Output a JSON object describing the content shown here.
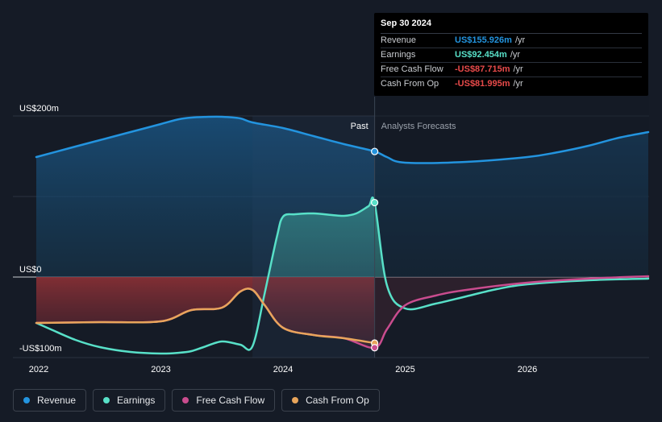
{
  "chart_data": {
    "type": "line",
    "x_ticks": [
      "2022",
      "2023",
      "2024",
      "2025",
      "2026"
    ],
    "y_axis_labels": [
      {
        "value": 200,
        "label": "US$200m"
      },
      {
        "value": 0,
        "label": "US$0"
      },
      {
        "value": -100,
        "label": "-US$100m"
      }
    ],
    "ylim": [
      -100,
      200
    ],
    "xlim": [
      2021.8,
      2026.99
    ],
    "past_label": "Past",
    "forecast_label": "Analysts Forecasts",
    "divider_x": 2024.75,
    "shaded_past_start": 2023.75,
    "series": [
      {
        "name": "Revenue",
        "color": "#2394df",
        "x": [
          2021.98,
          2022.25,
          2022.5,
          2022.75,
          2023.0,
          2023.15,
          2023.25,
          2023.4,
          2023.5,
          2023.65,
          2023.75,
          2024.0,
          2024.25,
          2024.5,
          2024.75,
          2024.85,
          2025.0,
          2025.5,
          2026.0,
          2026.25,
          2026.5,
          2026.75,
          2026.99
        ],
        "values": [
          149,
          160,
          170,
          180,
          190,
          196,
          198,
          199,
          199,
          197,
          192,
          185,
          175,
          165,
          156,
          149,
          142,
          143,
          149,
          155,
          163,
          173,
          180
        ]
      },
      {
        "name": "Earnings",
        "color": "#58e0c8",
        "x": [
          2021.98,
          2022.1,
          2022.3,
          2022.5,
          2022.75,
          2023.0,
          2023.15,
          2023.25,
          2023.35,
          2023.5,
          2023.65,
          2023.75,
          2023.85,
          2023.95,
          2024.0,
          2024.1,
          2024.25,
          2024.4,
          2024.5,
          2024.6,
          2024.7,
          2024.75,
          2024.85,
          2025.0,
          2025.25,
          2025.5,
          2025.75,
          2026.0,
          2026.5,
          2026.99
        ],
        "values": [
          -57,
          -65,
          -78,
          -87,
          -93,
          -95,
          -94,
          -92,
          -87,
          -80,
          -84,
          -86,
          -20,
          50,
          75,
          78,
          79,
          77,
          76,
          79,
          88,
          92,
          -10,
          -39,
          -33,
          -24,
          -15,
          -9,
          -4,
          -2
        ]
      },
      {
        "name": "Free Cash Flow",
        "color": "#c94c8e",
        "x": [
          2021.98,
          2022.5,
          2023.0,
          2023.25,
          2023.5,
          2023.65,
          2023.75,
          2023.85,
          2024.0,
          2024.25,
          2024.5,
          2024.75,
          2024.85,
          2025.0,
          2025.25,
          2025.5,
          2026.0,
          2026.5,
          2026.99
        ],
        "values": [
          -57,
          -56,
          -55,
          -41,
          -38,
          -18,
          -16,
          -35,
          -63,
          -72,
          -76,
          -87.7,
          -65,
          -35,
          -23,
          -16,
          -7,
          -2,
          1
        ]
      },
      {
        "name": "Cash From Op",
        "color": "#e8a55b",
        "x": [
          2021.98,
          2022.5,
          2023.0,
          2023.25,
          2023.5,
          2023.65,
          2023.75,
          2023.85,
          2024.0,
          2024.25,
          2024.5,
          2024.75
        ],
        "values": [
          -57,
          -56,
          -55,
          -41,
          -38,
          -18,
          -16,
          -35,
          -63,
          -72,
          -76,
          -82
        ]
      }
    ],
    "highlight_points": [
      {
        "series": "Revenue",
        "x": 2024.75,
        "value": 155.926
      },
      {
        "series": "Earnings",
        "x": 2024.75,
        "value": 92.454
      },
      {
        "series": "Cash From Op",
        "x": 2024.75,
        "value": -81.995
      },
      {
        "series": "Free Cash Flow",
        "x": 2024.75,
        "value": -87.715
      }
    ]
  },
  "tooltip": {
    "date": "Sep 30 2024",
    "unit": "/yr",
    "rows": [
      {
        "label": "Revenue",
        "value": "US$155.926m",
        "color": "#2394df"
      },
      {
        "label": "Earnings",
        "value": "US$92.454m",
        "color": "#58e0c8"
      },
      {
        "label": "Free Cash Flow",
        "value": "-US$87.715m",
        "color": "#e84a4a"
      },
      {
        "label": "Cash From Op",
        "value": "-US$81.995m",
        "color": "#e84a4a"
      }
    ]
  },
  "legend": [
    {
      "label": "Revenue",
      "color": "#2394df"
    },
    {
      "label": "Earnings",
      "color": "#58e0c8"
    },
    {
      "label": "Free Cash Flow",
      "color": "#c94c8e"
    },
    {
      "label": "Cash From Op",
      "color": "#e8a55b"
    }
  ]
}
